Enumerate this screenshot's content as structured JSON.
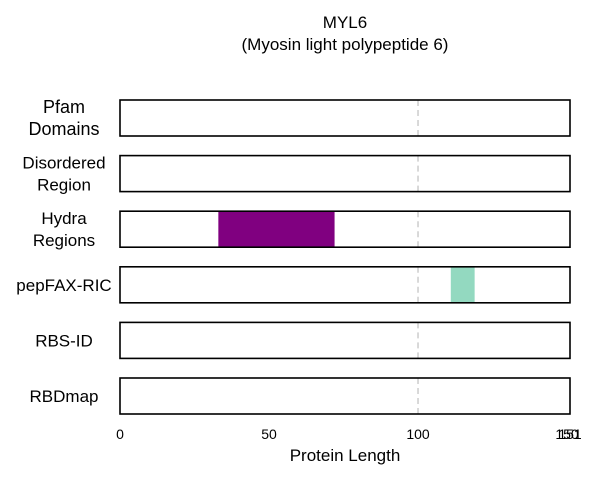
{
  "chart_data": {
    "type": "bar",
    "title": "MYL6",
    "subtitle": "(Myosin light polypeptide 6)",
    "xlabel": "Protein Length",
    "xlim": [
      0,
      151
    ],
    "x_ticks": [
      0,
      50,
      100,
      150,
      151
    ],
    "reference_line_x": 100,
    "tracks": [
      {
        "label": [
          "Pfam",
          "Domains"
        ],
        "segments": []
      },
      {
        "label": [
          "Disordered",
          "Region"
        ],
        "segments": []
      },
      {
        "label": [
          "Hydra",
          "Regions"
        ],
        "segments": [
          {
            "start": 33,
            "end": 72,
            "color": "#800080"
          }
        ]
      },
      {
        "label": [
          "pepFAX-RIC"
        ],
        "segments": [
          {
            "start": 111,
            "end": 119,
            "color": "#93d9c0"
          }
        ]
      },
      {
        "label": [
          "RBS-ID"
        ],
        "segments": []
      },
      {
        "label": [
          "RBDmap"
        ],
        "segments": []
      }
    ]
  }
}
